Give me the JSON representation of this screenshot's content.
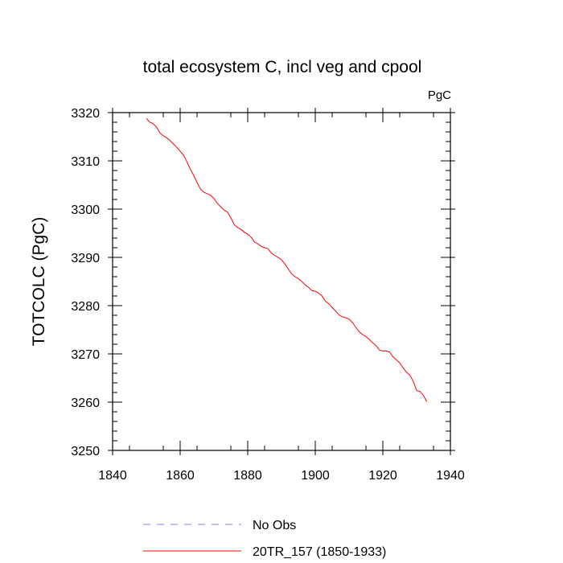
{
  "chart_data": {
    "type": "line",
    "title": "total ecosystem C, incl veg and cpool",
    "units_label": "PgC",
    "xlabel": "",
    "ylabel": "TOTCOLC  (PgC)",
    "xlim": [
      1840,
      1940
    ],
    "ylim": [
      3250,
      3320
    ],
    "x_ticks": [
      "1840",
      "1860",
      "1880",
      "1900",
      "1920",
      "1940"
    ],
    "y_ticks": [
      "3250",
      "3260",
      "3270",
      "3280",
      "3290",
      "3300",
      "3310",
      "3320"
    ],
    "grid": false,
    "legend_position": "bottom",
    "series": [
      {
        "name": "No Obs",
        "color": "#8080ff",
        "style": "dashed",
        "x": [],
        "y": []
      },
      {
        "name": "20TR_157 (1850-1933)",
        "color": "#ff0000",
        "style": "solid",
        "x": [
          1850,
          1851,
          1852,
          1853,
          1854,
          1855,
          1856,
          1857,
          1858,
          1859,
          1860,
          1861,
          1862,
          1863,
          1864,
          1865,
          1866,
          1867,
          1868,
          1869,
          1870,
          1871,
          1872,
          1873,
          1874,
          1875,
          1876,
          1877,
          1878,
          1879,
          1880,
          1881,
          1882,
          1883,
          1884,
          1885,
          1886,
          1887,
          1888,
          1889,
          1890,
          1891,
          1892,
          1893,
          1894,
          1895,
          1896,
          1897,
          1898,
          1899,
          1900,
          1901,
          1902,
          1903,
          1904,
          1905,
          1906,
          1907,
          1908,
          1909,
          1910,
          1911,
          1912,
          1913,
          1914,
          1915,
          1916,
          1917,
          1918,
          1919,
          1920,
          1921,
          1922,
          1923,
          1924,
          1925,
          1926,
          1927,
          1928,
          1929,
          1930,
          1931,
          1932,
          1933
        ],
        "y": [
          3318.8,
          3318.0,
          3317.7,
          3317.0,
          3315.8,
          3315.2,
          3314.8,
          3314.2,
          3313.5,
          3312.8,
          3312.0,
          3311.2,
          3309.8,
          3308.3,
          3307.0,
          3305.5,
          3304.2,
          3303.5,
          3303.2,
          3302.9,
          3302.2,
          3301.2,
          3300.5,
          3299.8,
          3299.4,
          3298.2,
          3296.8,
          3296.2,
          3295.8,
          3295.2,
          3294.8,
          3294.2,
          3293.2,
          3292.8,
          3292.3,
          3292.0,
          3291.8,
          3290.9,
          3290.4,
          3290.0,
          3289.5,
          3288.6,
          3287.6,
          3286.6,
          3286.0,
          3285.6,
          3285.0,
          3284.3,
          3283.8,
          3283.1,
          3283.0,
          3282.6,
          3282.0,
          3280.9,
          3280.4,
          3279.6,
          3278.9,
          3278.1,
          3277.7,
          3277.5,
          3277.2,
          3276.5,
          3275.5,
          3274.6,
          3274.0,
          3273.6,
          3273.0,
          3272.3,
          3271.7,
          3270.8,
          3270.6,
          3270.6,
          3270.4,
          3269.4,
          3268.8,
          3268.1,
          3267.1,
          3266.2,
          3265.6,
          3264.3,
          3262.4,
          3262.2,
          3261.4,
          3260.1
        ]
      }
    ]
  }
}
